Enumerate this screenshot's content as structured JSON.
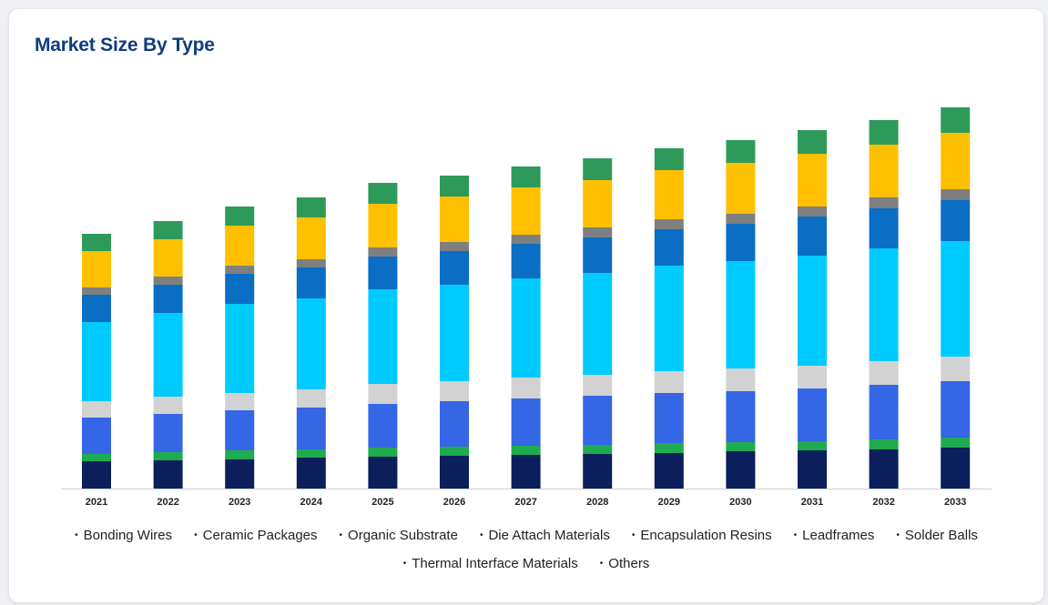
{
  "title": "Market Size By Type",
  "chart_data": {
    "type": "bar",
    "stacked": true,
    "title": "Market Size By Type",
    "xlabel": "",
    "ylabel": "",
    "grid": false,
    "legend_position": "bottom",
    "categories": [
      "2021",
      "2022",
      "2023",
      "2024",
      "2025",
      "2026",
      "2027",
      "2028",
      "2029",
      "2030",
      "2031",
      "2032",
      "2033"
    ],
    "series": [
      {
        "name": "Bonding Wires",
        "color": "#0a1f5c",
        "values": [
          30,
          31,
          32,
          34,
          35,
          36,
          37,
          38,
          39,
          41,
          42,
          43,
          45
        ]
      },
      {
        "name": "Ceramic Packages",
        "color": "#1fab4f",
        "values": [
          8,
          9,
          10,
          9,
          10,
          10,
          10,
          10,
          11,
          10,
          10,
          11,
          11
        ]
      },
      {
        "name": "Organic Substrate",
        "color": "#3466e6",
        "values": [
          40,
          42,
          44,
          46,
          48,
          50,
          52,
          54,
          55,
          56,
          58,
          60,
          62
        ]
      },
      {
        "name": "Die Attach Materials",
        "color": "#d2d2d2",
        "values": [
          18,
          19,
          19,
          20,
          22,
          22,
          23,
          23,
          24,
          25,
          25,
          26,
          27
        ]
      },
      {
        "name": "Encapsulation Resins",
        "color": "#00cbff",
        "values": [
          87,
          92,
          98,
          100,
          104,
          106,
          109,
          112,
          116,
          118,
          121,
          124,
          127
        ]
      },
      {
        "name": "Leadframes",
        "color": "#0a6ec4",
        "values": [
          30,
          31,
          33,
          34,
          36,
          37,
          38,
          39,
          40,
          41,
          43,
          44,
          45
        ]
      },
      {
        "name": "Solder Balls",
        "color": "#7f7f7f",
        "values": [
          8,
          9,
          9,
          9,
          10,
          10,
          10,
          11,
          11,
          11,
          11,
          12,
          12
        ]
      },
      {
        "name": "Thermal Interface Materials",
        "color": "#ffc000",
        "values": [
          40,
          41,
          44,
          46,
          48,
          50,
          52,
          52,
          54,
          56,
          58,
          58,
          62
        ]
      },
      {
        "name": "Others",
        "color": "#2e9a5a",
        "values": [
          19,
          20,
          21,
          22,
          23,
          23,
          23,
          24,
          24,
          25,
          26,
          27,
          28
        ]
      }
    ]
  }
}
